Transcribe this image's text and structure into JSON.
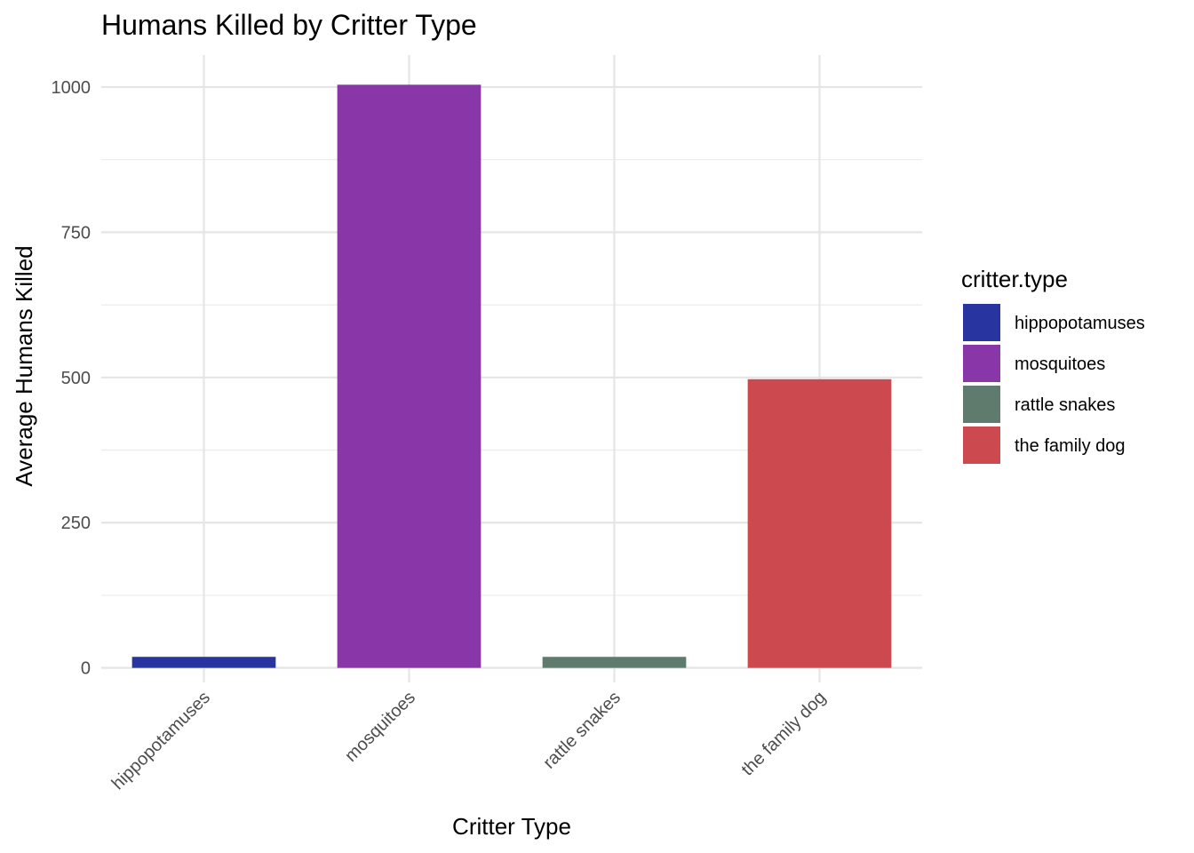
{
  "chart_data": {
    "type": "bar",
    "title": "Humans Killed by Critter Type",
    "xlabel": "Critter Type",
    "ylabel": "Average Humans Killed",
    "categories": [
      "hippopotamuses",
      "mosquitoes",
      "rattle snakes",
      "the family dog"
    ],
    "values": [
      19,
      1004,
      19,
      497
    ],
    "colors": [
      "#2835a0",
      "#8836a8",
      "#5f7b6e",
      "#cc4a4f"
    ],
    "ylim": [
      -25,
      1055
    ],
    "yticks": [
      0,
      250,
      500,
      750,
      1000
    ],
    "ytick_labels": [
      "0",
      "250",
      "500",
      "750",
      "1000"
    ],
    "grid": true,
    "legend": {
      "title": "critter.type",
      "placement": "right",
      "entries": [
        "hippopotamuses",
        "mosquitoes",
        "rattle snakes",
        "the family dog"
      ]
    }
  }
}
